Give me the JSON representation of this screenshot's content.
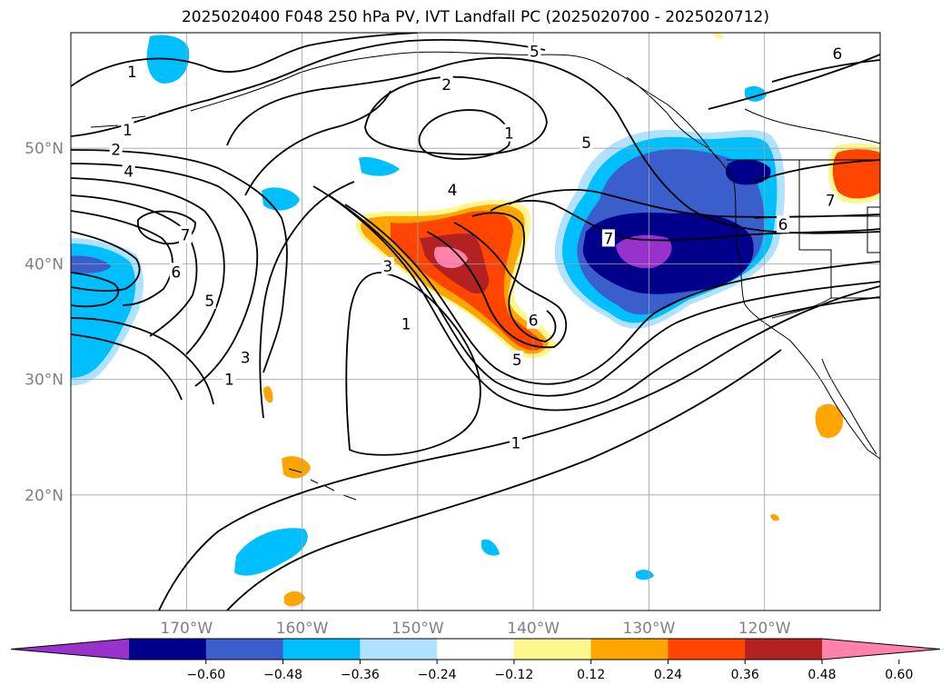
{
  "title": "2025020400 F048 250 hPa PV, IVT Landfall PC (2025020700 - 2025020712)",
  "map": {
    "projection": "PlateCarree",
    "lon_range": [
      -180,
      -110
    ],
    "lat_range": [
      10,
      60
    ],
    "lat_ticks": [
      {
        "value": 50,
        "label": "50°N"
      },
      {
        "value": 40,
        "label": "40°N"
      },
      {
        "value": 30,
        "label": "30°N"
      },
      {
        "value": 20,
        "label": "20°N"
      }
    ],
    "lon_ticks": [
      {
        "value": -170,
        "label": "170°W"
      },
      {
        "value": -160,
        "label": "160°W"
      },
      {
        "value": -150,
        "label": "150°W"
      },
      {
        "value": -140,
        "label": "140°W"
      },
      {
        "value": -130,
        "label": "130°W"
      },
      {
        "value": -120,
        "label": "120°W"
      }
    ],
    "gridlines": true,
    "tick_color": "#808080"
  },
  "contour_labels": [
    {
      "text": "1",
      "lon": -174.7,
      "lat": 56.6
    },
    {
      "text": "1",
      "lon": -175.1,
      "lat": 51.6
    },
    {
      "text": "2",
      "lon": -176.1,
      "lat": 49.9
    },
    {
      "text": "4",
      "lon": -175.0,
      "lat": 48.0
    },
    {
      "text": "7",
      "lon": -170.1,
      "lat": 42.5
    },
    {
      "text": "6",
      "lon": -170.9,
      "lat": 39.3
    },
    {
      "text": "5",
      "lon": -168.0,
      "lat": 36.8
    },
    {
      "text": "3",
      "lon": -164.9,
      "lat": 31.9
    },
    {
      "text": "1",
      "lon": -166.3,
      "lat": 30.0
    },
    {
      "text": "5",
      "lon": -139.9,
      "lat": 58.4
    },
    {
      "text": "2",
      "lon": -147.5,
      "lat": 55.5
    },
    {
      "text": "1",
      "lon": -142.1,
      "lat": 51.3
    },
    {
      "text": "5",
      "lon": -135.4,
      "lat": 50.5
    },
    {
      "text": "4",
      "lon": -147.0,
      "lat": 46.4
    },
    {
      "text": "3",
      "lon": -152.6,
      "lat": 39.8
    },
    {
      "text": "1",
      "lon": -151.0,
      "lat": 34.8
    },
    {
      "text": "6",
      "lon": -140.0,
      "lat": 35.1
    },
    {
      "text": "5",
      "lon": -141.4,
      "lat": 31.7
    },
    {
      "text": "1",
      "lon": -141.5,
      "lat": 24.5
    },
    {
      "text": "6",
      "lon": -113.7,
      "lat": 58.2
    },
    {
      "text": "6",
      "lon": -118.4,
      "lat": 43.4
    },
    {
      "text": "7",
      "lon": -114.3,
      "lat": 45.5
    },
    {
      "text": "7",
      "lon": -133.5,
      "lat": 42.2
    }
  ],
  "colorbar": {
    "colors": [
      "#9932cc",
      "#00008b",
      "#3a5fcd",
      "#00bfff",
      "#b0e2ff",
      "#ffffff",
      "#fff68f",
      "#ffa500",
      "#ff4500",
      "#b22222",
      "#ff82ab"
    ],
    "ticks": [
      "−0.60",
      "−0.48",
      "−0.36",
      "−0.24",
      "−0.12",
      "0.12",
      "0.24",
      "0.36",
      "0.48",
      "0.60"
    ],
    "extend": "both"
  }
}
